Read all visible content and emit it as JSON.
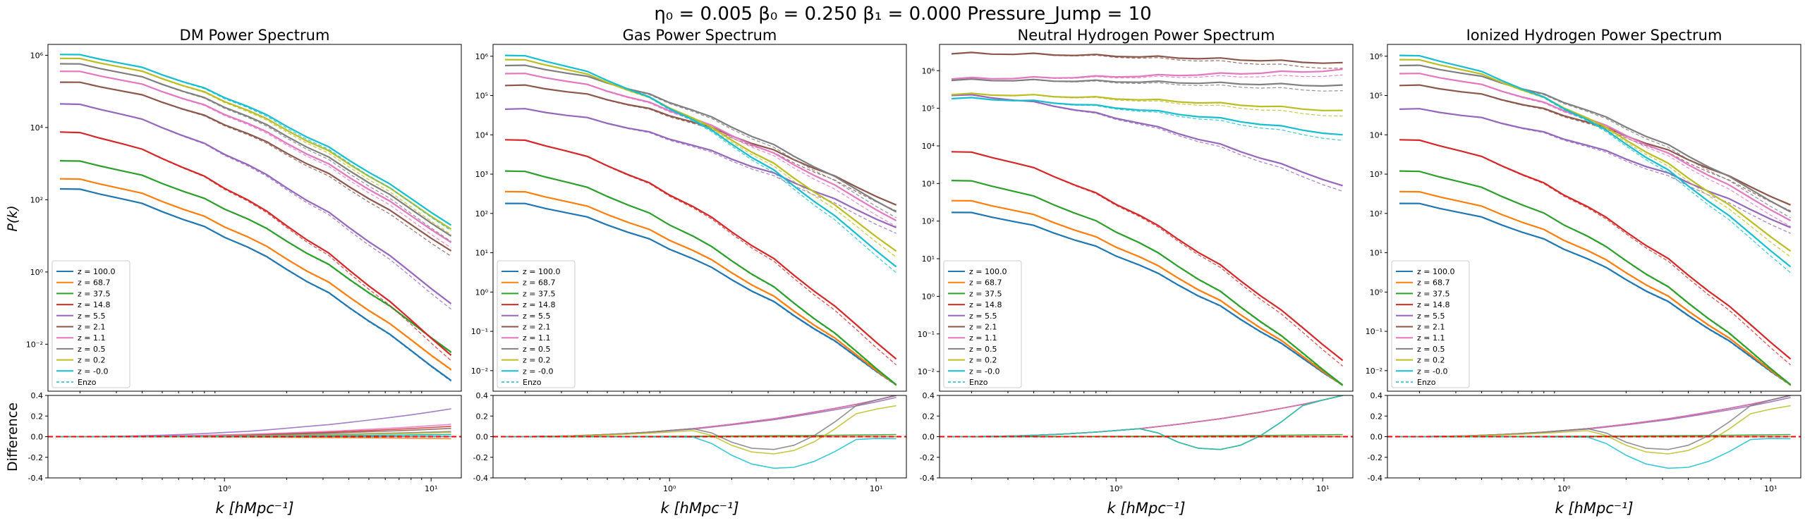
{
  "suptitle": "η₀ = 0.005   β₀ = 0.250   β₁ = 0.000  Pressure_Jump = 10",
  "legend": {
    "labels": [
      "z = 100.0",
      "z = 68.7",
      "z = 37.5",
      "z = 14.8",
      "z = 5.5",
      "z = 2.1",
      "z = 1.1",
      "z = 0.5",
      "z = 0.2",
      "z = -0.0"
    ],
    "enzo_label": "Enzo",
    "placement": "lower-left"
  },
  "colors": [
    "#1f77b4",
    "#ff7f0e",
    "#2ca02c",
    "#d62728",
    "#9467bd",
    "#8c564b",
    "#e377c2",
    "#7f7f7f",
    "#bcbd22",
    "#17becf"
  ],
  "reference_line_color": "#ff0000",
  "chart_data": [
    {
      "type": "line",
      "title": "DM Power Spectrum",
      "xlabel": "k [hMpc⁻¹]",
      "ylabel": "P(k)",
      "ylabel_diff": "Difference",
      "xscale": "log",
      "yscale": "log",
      "xlim": [
        0.14,
        14
      ],
      "ylim": [
        0.0005,
        2000000
      ],
      "yticks": [
        0.01,
        1,
        100,
        10000,
        1000000
      ],
      "ytick_labels": [
        "10⁻²",
        "10⁰",
        "10²",
        "10⁴",
        "10⁶"
      ],
      "diff_ylim": [
        -0.4,
        0.4
      ],
      "x": [
        0.16,
        0.2,
        0.25,
        0.32,
        0.4,
        0.5,
        0.63,
        0.8,
        1.0,
        1.3,
        1.6,
        2.0,
        2.5,
        3.2,
        4.0,
        5.0,
        6.3,
        8.0,
        10.0,
        12.5
      ],
      "series_anchors": [
        {
          "name": "z = 100.0",
          "y_low": 200,
          "y_high": 0.0009
        },
        {
          "name": "z = 68.7",
          "y_low": 380,
          "y_high": 0.0018
        },
        {
          "name": "z = 37.5",
          "y_low": 1200,
          "y_high": 0.0055
        },
        {
          "name": "z = 14.8",
          "y_low": 7500,
          "y_high": 0.0045
        },
        {
          "name": "z = 5.5",
          "y_low": 45000,
          "y_high": 0.12
        },
        {
          "name": "z = 2.1",
          "y_low": 180000,
          "y_high": 3.5
        },
        {
          "name": "z = 1.1",
          "y_low": 360000,
          "y_high": 6
        },
        {
          "name": "z = 0.5",
          "y_low": 580000,
          "y_high": 9
        },
        {
          "name": "z = 0.2",
          "y_low": 820000,
          "y_high": 14
        },
        {
          "name": "z = -0.0",
          "y_low": 1050000,
          "y_high": 18
        }
      ],
      "diff_final": [
        0.0,
        -0.02,
        0.02,
        0.1,
        0.27,
        0.08,
        0.12,
        0.05,
        0.04,
        0.02
      ]
    },
    {
      "type": "line",
      "title": "Gas Power Spectrum",
      "xlabel": "k [hMpc⁻¹]",
      "xscale": "log",
      "yscale": "log",
      "xlim": [
        0.14,
        14
      ],
      "ylim": [
        0.003,
        2000000
      ],
      "yticks": [
        0.01,
        0.1,
        1,
        10,
        100,
        1000,
        10000,
        100000,
        1000000
      ],
      "ytick_labels": [
        "10⁻²",
        "10⁻¹",
        "10⁰",
        "10¹",
        "10²",
        "10³",
        "10⁴",
        "10⁵",
        "10⁶"
      ],
      "diff_ylim": [
        -0.4,
        0.4
      ],
      "x": [
        0.16,
        0.2,
        0.25,
        0.32,
        0.4,
        0.5,
        0.63,
        0.8,
        1.0,
        1.3,
        1.6,
        2.0,
        2.5,
        3.2,
        4.0,
        5.0,
        6.3,
        8.0,
        10.0,
        12.5
      ],
      "series_anchors": [
        {
          "name": "z = 100.0",
          "y_low": 180,
          "y_high": 0.004
        },
        {
          "name": "z = 68.7",
          "y_low": 360,
          "y_high": 0.004
        },
        {
          "name": "z = 37.5",
          "y_low": 1200,
          "y_high": 0.004
        },
        {
          "name": "z = 14.8",
          "y_low": 7500,
          "y_high": 0.018
        },
        {
          "name": "z = 5.5",
          "y_low": 45000,
          "y_high": 40
        },
        {
          "name": "z = 2.1",
          "y_low": 180000,
          "y_high": 150
        },
        {
          "name": "z = 1.1",
          "y_low": 360000,
          "y_high": 60
        },
        {
          "name": "z = 0.5",
          "y_low": 580000,
          "y_high": 100
        },
        {
          "name": "z = 0.2",
          "y_low": 820000,
          "y_high": 10
        },
        {
          "name": "z = -0.0",
          "y_low": 1050000,
          "y_high": 4
        }
      ],
      "diff_final": [
        0.0,
        0.0,
        0.02,
        0.4,
        0.38,
        0.4,
        0.4,
        0.4,
        0.3,
        -0.02
      ]
    },
    {
      "type": "line",
      "title": "Neutral Hydrogen Power Spectrum",
      "xlabel": "k [hMpc⁻¹]",
      "xscale": "log",
      "yscale": "log",
      "xlim": [
        0.14,
        14
      ],
      "ylim": [
        0.003,
        5000000
      ],
      "yticks": [
        0.01,
        0.1,
        1,
        10,
        100,
        1000,
        10000,
        100000,
        1000000
      ],
      "ytick_labels": [
        "10⁻²",
        "10⁻¹",
        "10⁰",
        "10¹",
        "10²",
        "10³",
        "10⁴",
        "10⁵",
        "10⁶"
      ],
      "diff_ylim": [
        -0.4,
        0.4
      ],
      "x": [
        0.16,
        0.2,
        0.25,
        0.32,
        0.4,
        0.5,
        0.63,
        0.8,
        1.0,
        1.3,
        1.6,
        2.0,
        2.5,
        3.2,
        4.0,
        5.0,
        6.3,
        8.0,
        10.0,
        12.5
      ],
      "series_anchors": [
        {
          "name": "z = 100.0",
          "y_low": 170,
          "y_high": 0.004
        },
        {
          "name": "z = 68.7",
          "y_low": 350,
          "y_high": 0.004
        },
        {
          "name": "z = 37.5",
          "y_low": 1200,
          "y_high": 0.004
        },
        {
          "name": "z = 14.8",
          "y_low": 7000,
          "y_high": 0.018
        },
        {
          "name": "z = 5.5",
          "y_low": 220000,
          "y_high": 800
        },
        {
          "name": "z = 2.1",
          "y_low": 2800000,
          "y_high": 1500000
        },
        {
          "name": "z = 1.1",
          "y_low": 600000,
          "y_high": 1000000
        },
        {
          "name": "z = 0.5",
          "y_low": 550000,
          "y_high": 380000
        },
        {
          "name": "z = 0.2",
          "y_low": 230000,
          "y_high": 80000
        },
        {
          "name": "z = -0.0",
          "y_low": 180000,
          "y_high": 18000
        }
      ],
      "diff_final": [
        0.0,
        0.0,
        0.02,
        0.4,
        0.4,
        0.4,
        0.4,
        0.4,
        0.4,
        0.4
      ]
    },
    {
      "type": "line",
      "title": "Ionized Hydrogen Power Spectrum",
      "xlabel": "k [hMpc⁻¹]",
      "xscale": "log",
      "yscale": "log",
      "xlim": [
        0.14,
        14
      ],
      "ylim": [
        0.003,
        2000000
      ],
      "yticks": [
        0.01,
        0.1,
        1,
        10,
        100,
        1000,
        10000,
        100000,
        1000000
      ],
      "ytick_labels": [
        "10⁻²",
        "10⁻¹",
        "10⁰",
        "10¹",
        "10²",
        "10³",
        "10⁴",
        "10⁵",
        "10⁶"
      ],
      "diff_ylim": [
        -0.4,
        0.4
      ],
      "x": [
        0.16,
        0.2,
        0.25,
        0.32,
        0.4,
        0.5,
        0.63,
        0.8,
        1.0,
        1.3,
        1.6,
        2.0,
        2.5,
        3.2,
        4.0,
        5.0,
        6.3,
        8.0,
        10.0,
        12.5
      ],
      "series_anchors": [
        {
          "name": "z = 100.0",
          "y_low": 180,
          "y_high": 0.004
        },
        {
          "name": "z = 68.7",
          "y_low": 360,
          "y_high": 0.004
        },
        {
          "name": "z = 37.5",
          "y_low": 1200,
          "y_high": 0.004
        },
        {
          "name": "z = 14.8",
          "y_low": 7500,
          "y_high": 0.018
        },
        {
          "name": "z = 5.5",
          "y_low": 45000,
          "y_high": 40
        },
        {
          "name": "z = 2.1",
          "y_low": 180000,
          "y_high": 150
        },
        {
          "name": "z = 1.1",
          "y_low": 360000,
          "y_high": 60
        },
        {
          "name": "z = 0.5",
          "y_low": 580000,
          "y_high": 100
        },
        {
          "name": "z = 0.2",
          "y_low": 820000,
          "y_high": 10
        },
        {
          "name": "z = -0.0",
          "y_low": 1050000,
          "y_high": 4
        }
      ],
      "diff_final": [
        0.0,
        0.0,
        0.02,
        0.4,
        0.38,
        0.4,
        0.4,
        0.4,
        0.3,
        -0.02
      ]
    }
  ]
}
